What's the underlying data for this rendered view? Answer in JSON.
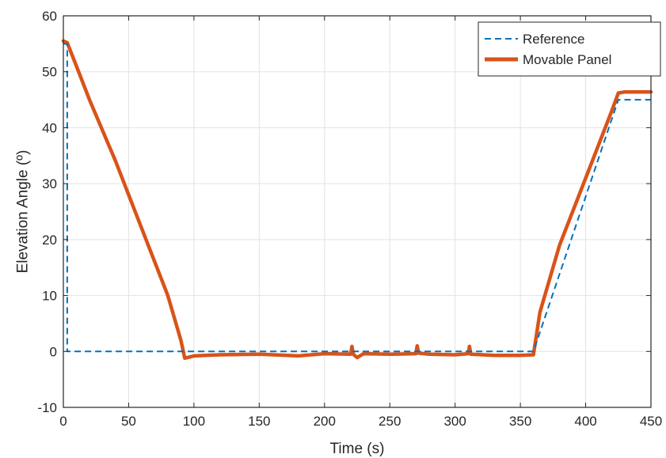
{
  "chart_data": {
    "type": "line",
    "title": "",
    "xlabel": "Time (s)",
    "ylabel": "Elevation Angle (º)",
    "xlim": [
      0,
      450
    ],
    "ylim": [
      -10,
      60
    ],
    "xticks": [
      0,
      50,
      100,
      150,
      200,
      250,
      300,
      350,
      400,
      450
    ],
    "yticks": [
      -10,
      0,
      10,
      20,
      30,
      40,
      50,
      60
    ],
    "xtick_labels": [
      "0",
      "50",
      "100",
      "150",
      "200",
      "250",
      "300",
      "350",
      "400",
      "450"
    ],
    "ytick_labels": [
      "-10",
      "0",
      "10",
      "20",
      "30",
      "40",
      "50",
      "60"
    ],
    "grid": true,
    "legend_position": "top-right",
    "series": [
      {
        "name": "Reference",
        "style": "dashed",
        "color": "#0072BD",
        "x": [
          0,
          3,
          3,
          360,
          425,
          450
        ],
        "y": [
          55,
          55,
          0,
          0,
          45,
          45
        ]
      },
      {
        "name": "Movable Panel",
        "style": "solid",
        "color": "#D95319",
        "x": [
          0,
          3,
          10,
          20,
          40,
          60,
          80,
          90,
          93,
          100,
          120,
          150,
          180,
          200,
          220,
          221,
          222,
          225,
          230,
          250,
          270,
          271,
          272,
          280,
          300,
          310,
          311,
          312,
          330,
          350,
          360,
          365,
          380,
          400,
          420,
          425,
          430,
          450
        ],
        "y": [
          55.5,
          55.2,
          51,
          45,
          34,
          22,
          10,
          2,
          -1.2,
          -0.8,
          -0.6,
          -0.5,
          -0.8,
          -0.4,
          -0.5,
          0.9,
          -0.5,
          -1.1,
          -0.4,
          -0.5,
          -0.4,
          1.0,
          -0.3,
          -0.5,
          -0.6,
          -0.4,
          0.9,
          -0.5,
          -0.7,
          -0.7,
          -0.6,
          7,
          19,
          31,
          43,
          46.2,
          46.4,
          46.4
        ]
      }
    ]
  }
}
